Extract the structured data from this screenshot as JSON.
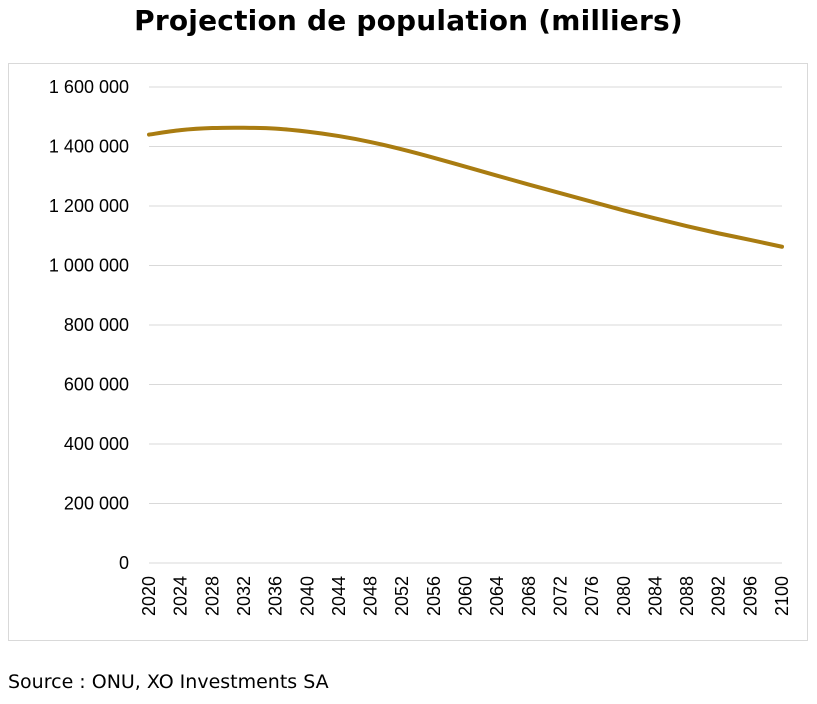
{
  "page": {
    "title": "Projection de population (milliers)",
    "source": "Source : ONU, XO Investments SA"
  },
  "colors": {
    "line": "#A97C11",
    "grid": "#d9d9d9",
    "frame": "#d9d9d9"
  },
  "chart_data": {
    "type": "line",
    "title": "Projection de population (milliers)",
    "xlabel": "",
    "ylabel": "",
    "ylim": [
      0,
      1600000
    ],
    "xlim": [
      2020,
      2100
    ],
    "grid": true,
    "legend": "none",
    "y_ticks": [
      {
        "value": 0,
        "label": "0"
      },
      {
        "value": 200000,
        "label": "200 000"
      },
      {
        "value": 400000,
        "label": "400 000"
      },
      {
        "value": 600000,
        "label": "600 000"
      },
      {
        "value": 800000,
        "label": "800 000"
      },
      {
        "value": 1000000,
        "label": "1 000 000"
      },
      {
        "value": 1200000,
        "label": "1 200 000"
      },
      {
        "value": 1400000,
        "label": "1 400 000"
      },
      {
        "value": 1600000,
        "label": "1 600 000"
      }
    ],
    "x_ticks": [
      "2020",
      "2024",
      "2028",
      "2032",
      "2036",
      "2040",
      "2044",
      "2048",
      "2052",
      "2056",
      "2060",
      "2064",
      "2068",
      "2072",
      "2076",
      "2080",
      "2084",
      "2088",
      "2092",
      "2096",
      "2100"
    ],
    "series": [
      {
        "x": [
          2020,
          2024,
          2028,
          2032,
          2036,
          2040,
          2044,
          2048,
          2052,
          2056,
          2060,
          2064,
          2068,
          2072,
          2076,
          2080,
          2084,
          2088,
          2092,
          2096,
          2100
        ],
        "values": [
          1440000,
          1455000,
          1462000,
          1463000,
          1460000,
          1450000,
          1435000,
          1415000,
          1390000,
          1362000,
          1332000,
          1302000,
          1272000,
          1243000,
          1214000,
          1185000,
          1158000,
          1132000,
          1108000,
          1086000,
          1063000
        ]
      }
    ]
  }
}
